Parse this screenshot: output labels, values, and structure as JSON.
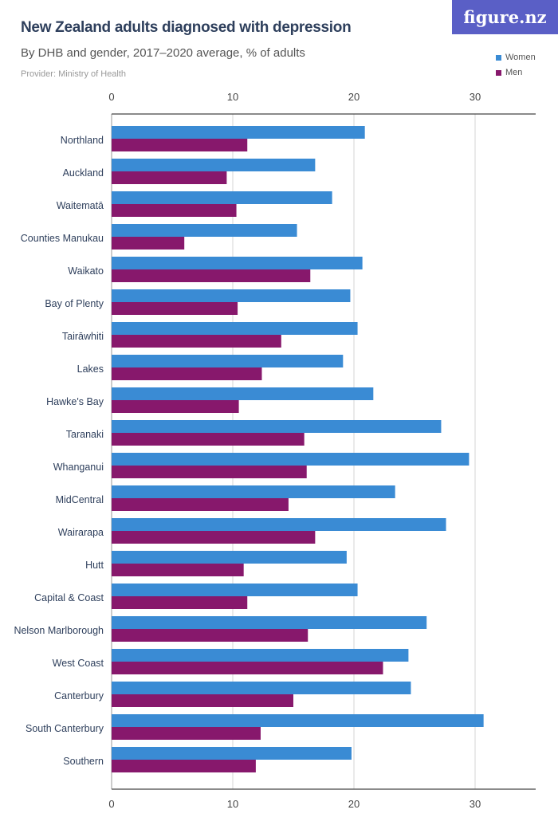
{
  "logo": "figure.nz",
  "chart_data": {
    "type": "bar",
    "orientation": "horizontal",
    "title": "New Zealand adults diagnosed with depression",
    "subtitle": "By DHB and gender, 2017–2020 average, % of adults",
    "provider": "Provider: Ministry of Health",
    "xlim": [
      0,
      35
    ],
    "ticks": [
      "0",
      "10",
      "20",
      "30"
    ],
    "tick_values": [
      0,
      10,
      20,
      30
    ],
    "grid": true,
    "legend_position": "top-right",
    "categories": [
      "Northland",
      "Auckland",
      "Waitematā",
      "Counties Manukau",
      "Waikato",
      "Bay of Plenty",
      "Tairāwhiti",
      "Lakes",
      "Hawke's Bay",
      "Taranaki",
      "Whanganui",
      "MidCentral",
      "Wairarapa",
      "Hutt",
      "Capital & Coast",
      "Nelson Marlborough",
      "West Coast",
      "Canterbury",
      "South Canterbury",
      "Southern"
    ],
    "series": [
      {
        "name": "Women",
        "color": "#3a8bd4",
        "values": [
          20.9,
          16.8,
          18.2,
          15.3,
          20.7,
          19.7,
          20.3,
          19.1,
          21.6,
          27.2,
          29.5,
          23.4,
          27.6,
          19.4,
          20.3,
          26.0,
          24.5,
          24.7,
          30.7,
          19.8
        ]
      },
      {
        "name": "Men",
        "color": "#87186c",
        "values": [
          11.2,
          9.5,
          10.3,
          6.0,
          16.4,
          10.4,
          14.0,
          12.4,
          10.5,
          15.9,
          16.1,
          14.6,
          16.8,
          10.9,
          11.2,
          16.2,
          22.4,
          15.0,
          12.3,
          11.9
        ]
      }
    ]
  }
}
